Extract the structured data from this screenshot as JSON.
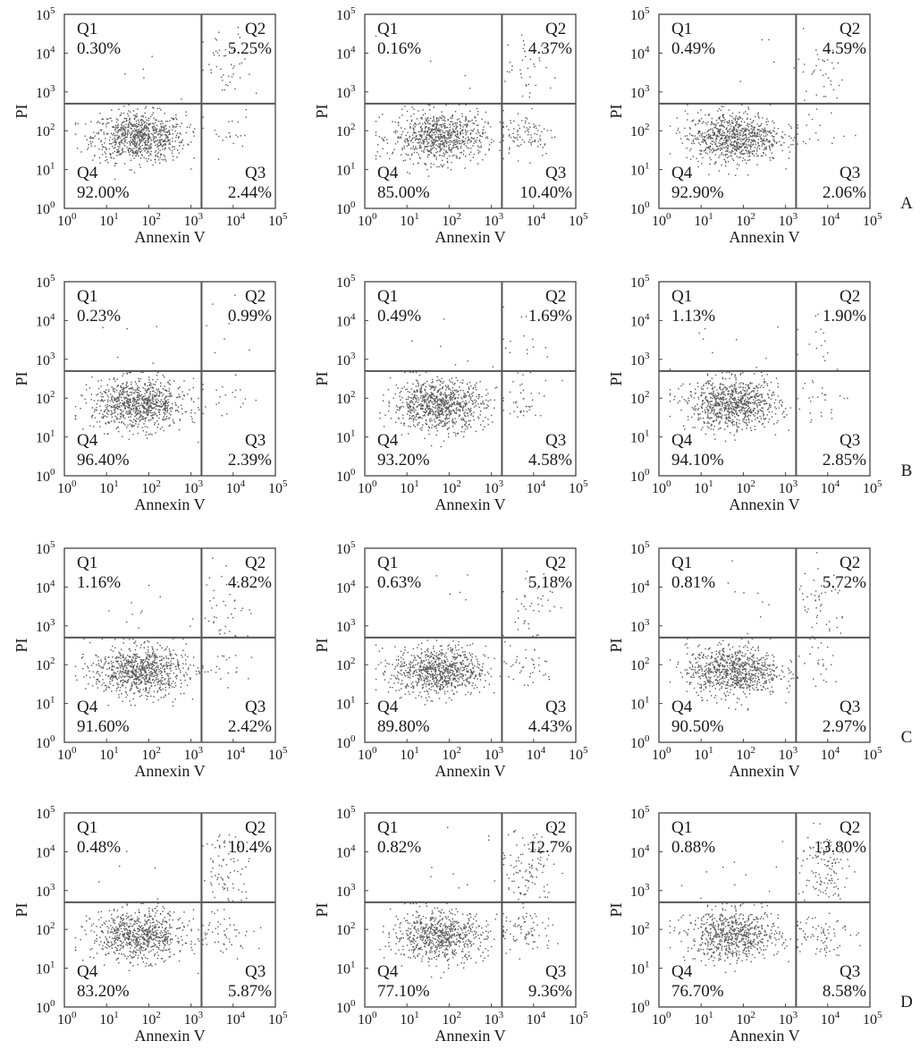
{
  "chart_data": {
    "type": "scatter",
    "description_axes": {
      "xlabel": "Annexin V",
      "ylabel": "PI",
      "scale": "log",
      "xlim": [
        1,
        100000
      ],
      "ylim": [
        1,
        100000
      ],
      "ticks": [
        "10",
        "10",
        "10",
        "10",
        "10",
        "10"
      ],
      "tick_exponents": [
        "0",
        "1",
        "2",
        "3",
        "4",
        "5"
      ]
    },
    "grid": false,
    "rows": [
      {
        "label": "A",
        "panels": [
          {
            "Q1": "0.30%",
            "Q2": "5.25%",
            "Q3": "2.44%",
            "Q4": "92.00%"
          },
          {
            "Q1": "0.16%",
            "Q2": "4.37%",
            "Q3": "10.40%",
            "Q4": "85.00%"
          },
          {
            "Q1": "0.49%",
            "Q2": "4.59%",
            "Q3": "2.06%",
            "Q4": "92.90%"
          }
        ]
      },
      {
        "label": "B",
        "panels": [
          {
            "Q1": "0.23%",
            "Q2": "0.99%",
            "Q3": "2.39%",
            "Q4": "96.40%"
          },
          {
            "Q1": "0.49%",
            "Q2": "1.69%",
            "Q3": "4.58%",
            "Q4": "93.20%"
          },
          {
            "Q1": "1.13%",
            "Q2": "1.90%",
            "Q3": "2.85%",
            "Q4": "94.10%"
          }
        ]
      },
      {
        "label": "C",
        "panels": [
          {
            "Q1": "1.16%",
            "Q2": "4.82%",
            "Q3": "2.42%",
            "Q4": "91.60%"
          },
          {
            "Q1": "0.63%",
            "Q2": "5.18%",
            "Q3": "4.43%",
            "Q4": "89.80%"
          },
          {
            "Q1": "0.81%",
            "Q2": "5.72%",
            "Q3": "2.97%",
            "Q4": "90.50%"
          }
        ]
      },
      {
        "label": "D",
        "panels": [
          {
            "Q1": "0.48%",
            "Q2": "10.4%",
            "Q3": "5.87%",
            "Q4": "83.20%"
          },
          {
            "Q1": "0.82%",
            "Q2": "12.7%",
            "Q3": "9.36%",
            "Q4": "77.10%"
          },
          {
            "Q1": "0.88%",
            "Q2": "13.80%",
            "Q3": "8.58%",
            "Q4": "76.70%"
          }
        ]
      }
    ],
    "quadrant_names": [
      "Q1",
      "Q2",
      "Q3",
      "Q4"
    ],
    "gate_position": {
      "x": 1778,
      "y": 500
    },
    "colors": {
      "dots": "#5a5a5a",
      "frame": "#444444",
      "gate": "#555555"
    }
  }
}
